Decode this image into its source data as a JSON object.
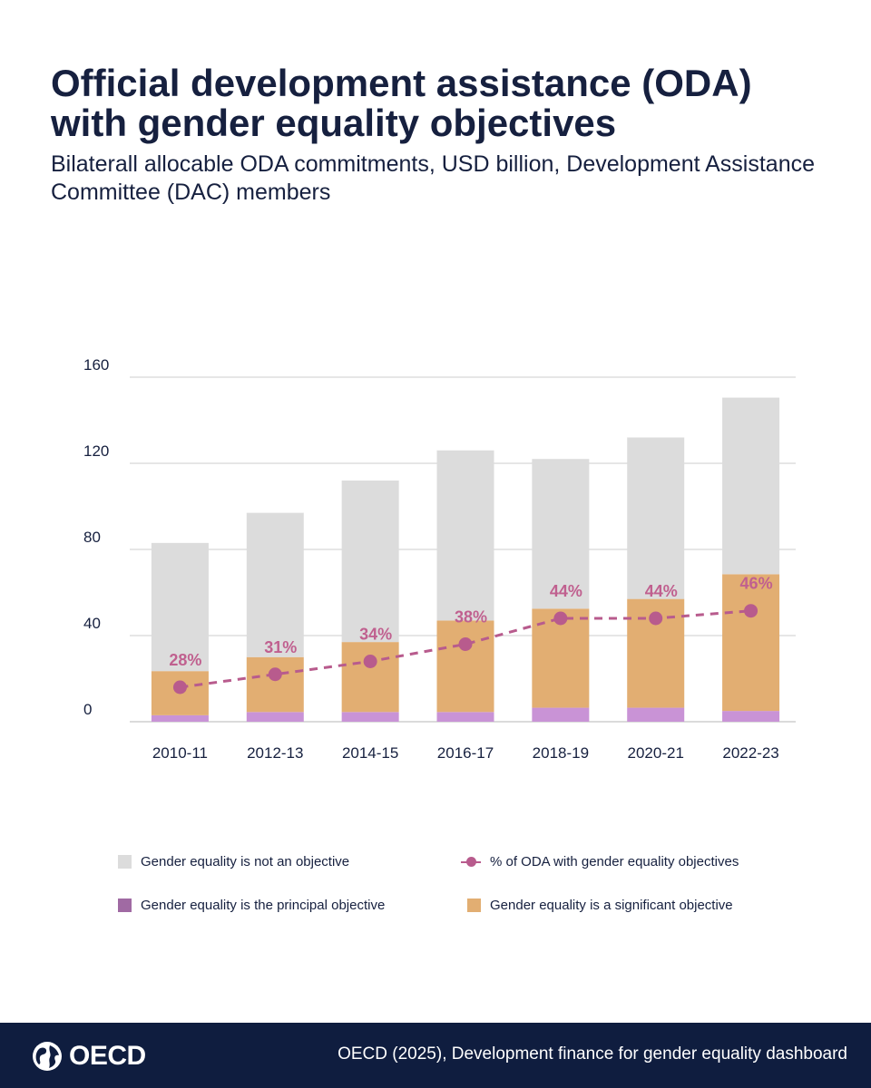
{
  "header": {
    "title": "Official development assistance (ODA) with gender equality objectives",
    "subtitle": "Bilaterall allocable ODA commitments, USD billion, Development Assistance Committee (DAC) members"
  },
  "chart_data": {
    "type": "bar",
    "stacked": true,
    "categories": [
      "2010-11",
      "2012-13",
      "2014-15",
      "2016-17",
      "2018-19",
      "2020-21",
      "2022-23"
    ],
    "ylim": [
      0,
      160
    ],
    "yticks": [
      "0",
      "40",
      "80",
      "120",
      "160"
    ],
    "grid": true,
    "series": [
      {
        "name": "Gender equality is the principal objective",
        "values": [
          3,
          4.5,
          4.5,
          4.5,
          6.5,
          6.5,
          5
        ],
        "color": "#c993d6"
      },
      {
        "name": "Gender equality is a significant objective",
        "values": [
          20.5,
          25.5,
          32.5,
          42.5,
          46,
          50.5,
          63.5
        ],
        "color": "#e2ae72"
      },
      {
        "name": "Gender equality is not an objective",
        "values": [
          59.5,
          67,
          75,
          79,
          69.5,
          75,
          82
        ],
        "color": "#dcdcdc"
      }
    ],
    "line": {
      "name": "% of ODA with gender equality objectives",
      "values": [
        28,
        31,
        34,
        38,
        44,
        44,
        46
      ],
      "labels": [
        "28%",
        "31%",
        "34%",
        "38%",
        "44%",
        "44%",
        "46%"
      ],
      "color": "#b85b8d"
    },
    "line_plotted_on_left_axis": [
      16,
      22,
      28,
      36,
      48,
      48,
      51.5
    ]
  },
  "legend": {
    "not_objective": "Gender equality is not an objective",
    "pct_line": "% of ODA with gender equality objectives",
    "principal": "Gender equality is the principal objective",
    "significant": "Gender equality is a significant objective",
    "colors": {
      "not_objective": "#dcdcdc",
      "principal": "#a06aa3",
      "significant": "#e2ae72"
    }
  },
  "footer": {
    "logo_text": "OECD",
    "source": "OECD (2025), Development finance for gender equality dashboard"
  }
}
